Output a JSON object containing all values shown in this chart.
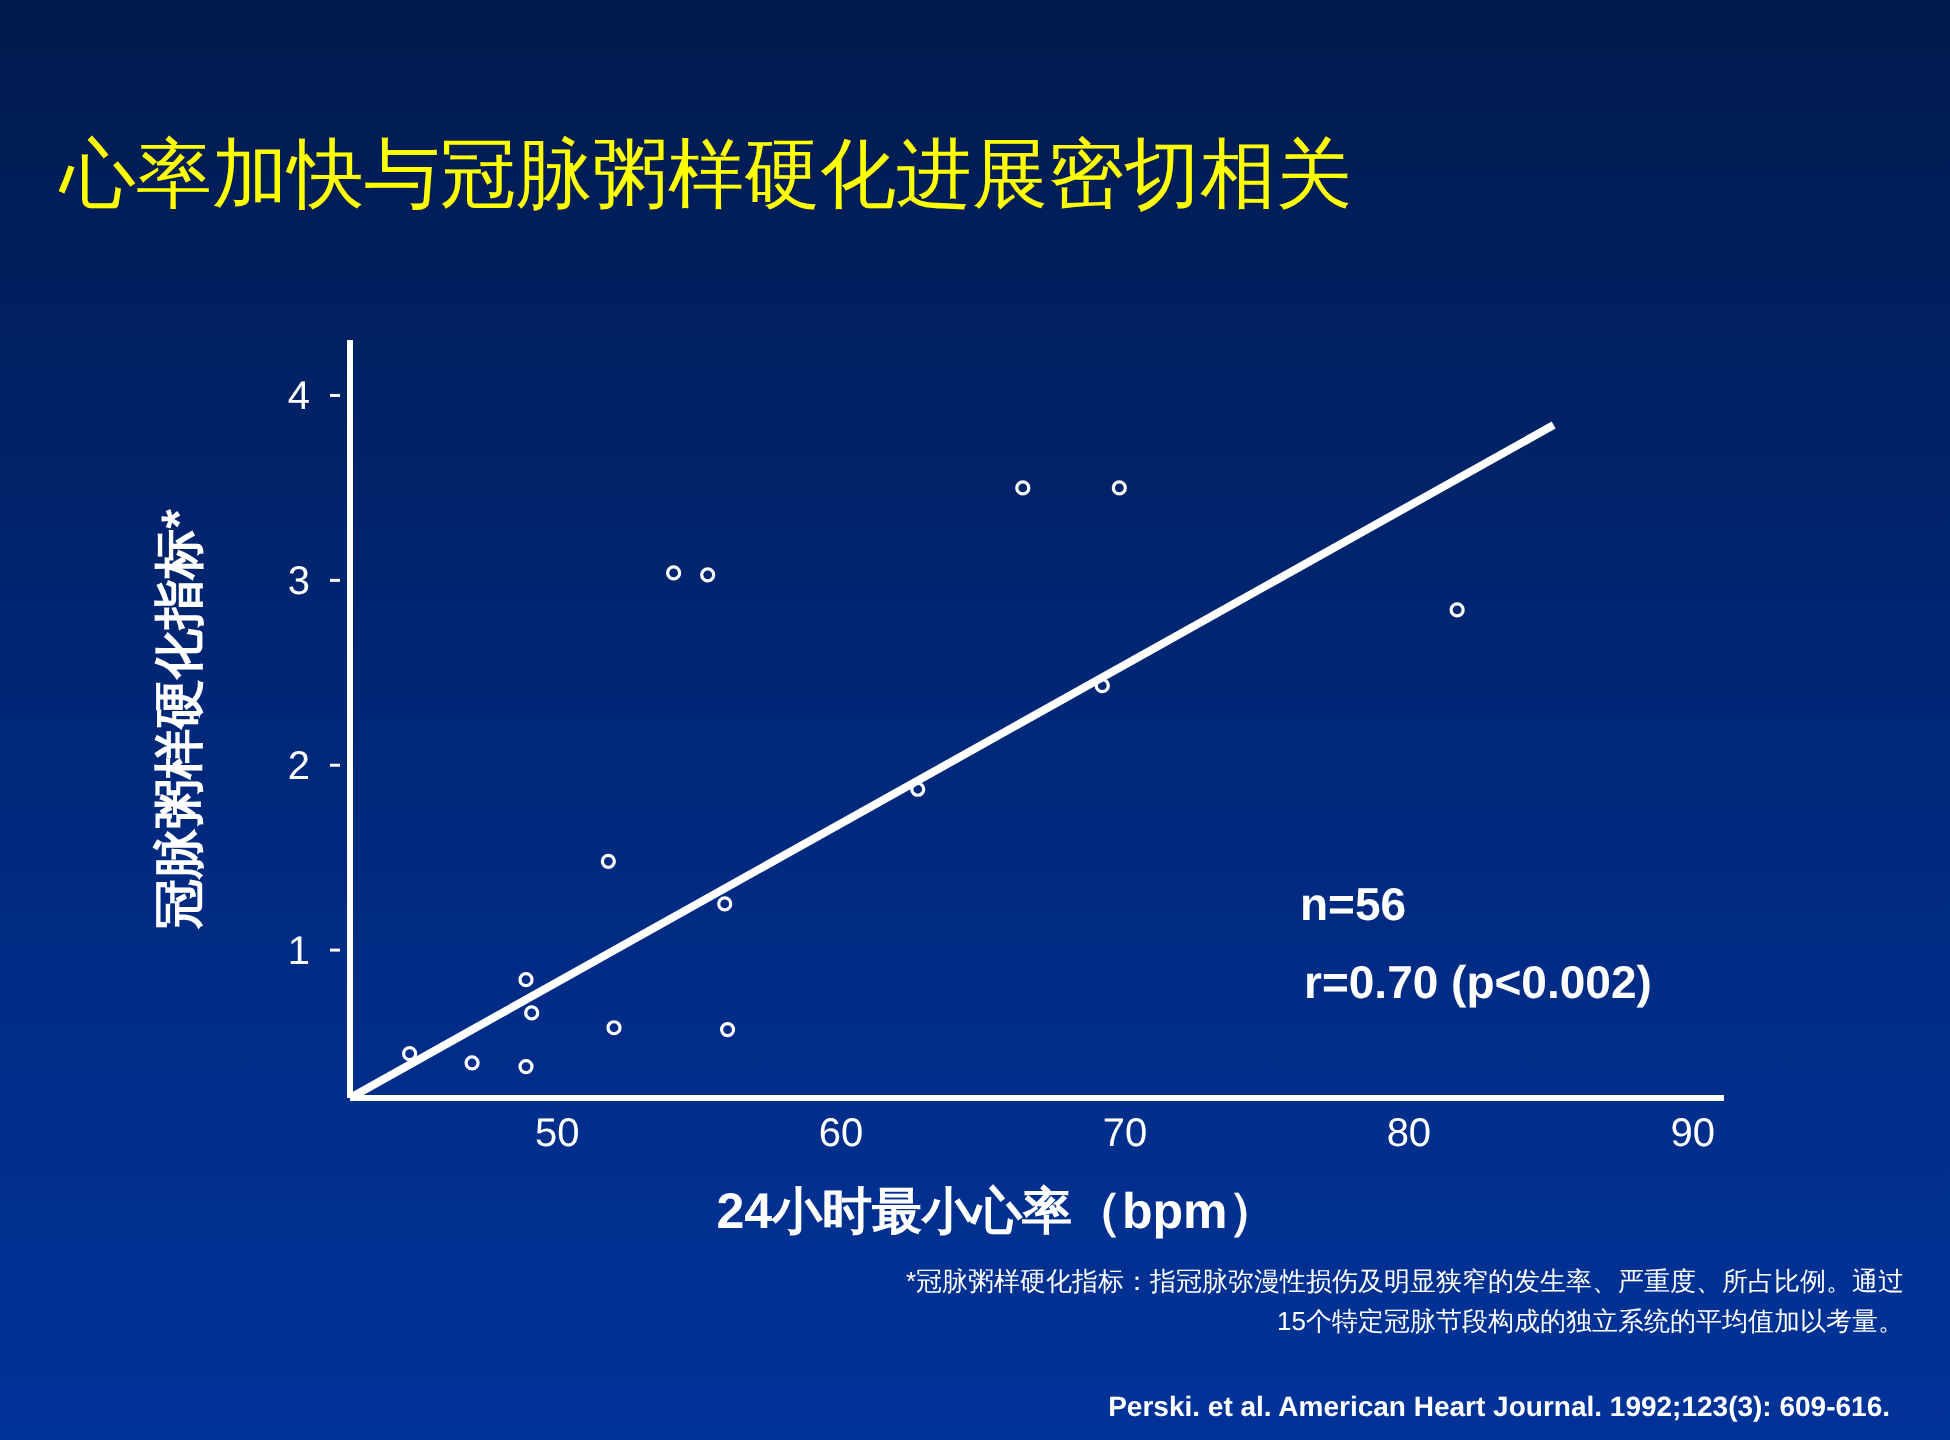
{
  "chart_data": {
    "type": "scatter",
    "title": "心率加快与冠脉粥样硬化进展密切相关",
    "xlabel": "24小时最小心率（bpm）",
    "ylabel": "冠脉粥样硬化指标*",
    "xlim": [
      42.7,
      91.1
    ],
    "ylim": [
      0.2,
      4.3
    ],
    "xticks": [
      50,
      60,
      70,
      80,
      90
    ],
    "yticks": [
      1,
      2,
      3,
      4
    ],
    "grid": false,
    "marker": "circle",
    "series": [
      {
        "color": "#ffffff",
        "x": [
          44.8,
          47.0,
          48.9,
          48.9,
          49.1,
          51.8,
          52.0,
          54.1,
          55.3,
          55.9,
          56.0,
          62.7,
          66.4,
          69.2,
          69.8,
          81.7
        ],
        "values": [
          0.44,
          0.39,
          0.37,
          0.84,
          0.66,
          1.48,
          0.58,
          3.04,
          3.03,
          1.25,
          0.57,
          1.87,
          3.5,
          2.43,
          3.5,
          2.84
        ]
      },
      {
        "type": "line",
        "color": "#ffffff",
        "line_style": "solid",
        "marker": "none",
        "x": [
          42.7,
          85.1
        ],
        "values": [
          0.2,
          3.84
        ]
      }
    ],
    "annotations": [
      "n=56",
      "r=0.70 (p<0.002)",
      "*冠脉粥样硬化指标：指冠脉弥漫性损伤及明显狭窄的发生率、严重度、所占比例。通过15个特定冠脉节段构成的独立系统的平均值加以考量。",
      "Perski. et al. American Heart Journal. 1992;123(3): 609-616."
    ]
  }
}
